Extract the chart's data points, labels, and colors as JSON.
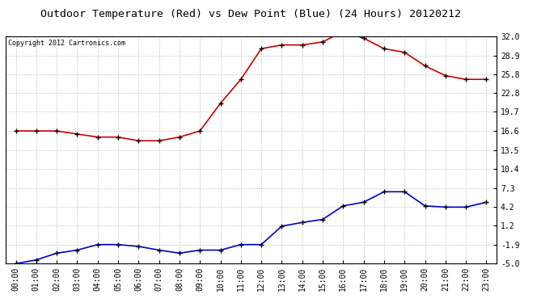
{
  "title": "Outdoor Temperature (Red) vs Dew Point (Blue) (24 Hours) 20120212",
  "copyright_text": "Copyright 2012 Cartronics.com",
  "x_labels": [
    "00:00",
    "01:00",
    "02:00",
    "03:00",
    "04:00",
    "05:00",
    "06:00",
    "07:00",
    "08:00",
    "09:00",
    "10:00",
    "11:00",
    "12:00",
    "13:00",
    "14:00",
    "15:00",
    "16:00",
    "17:00",
    "18:00",
    "19:00",
    "20:00",
    "21:00",
    "22:00",
    "23:00"
  ],
  "temp_red": [
    16.6,
    16.6,
    16.6,
    16.1,
    15.6,
    15.6,
    15.0,
    15.0,
    15.6,
    16.6,
    21.1,
    25.0,
    30.0,
    30.6,
    30.6,
    31.1,
    32.8,
    31.7,
    30.0,
    29.4,
    27.2,
    25.6,
    25.0,
    25.0
  ],
  "dew_blue": [
    -5.0,
    -4.4,
    -3.3,
    -2.8,
    -1.9,
    -1.9,
    -2.2,
    -2.8,
    -3.3,
    -2.8,
    -2.8,
    -1.9,
    -1.9,
    1.1,
    1.7,
    2.2,
    4.4,
    5.0,
    6.7,
    6.7,
    4.4,
    4.2,
    4.2,
    5.0
  ],
  "y_ticks": [
    -5.0,
    -1.9,
    1.2,
    4.2,
    7.3,
    10.4,
    13.5,
    16.6,
    19.7,
    22.8,
    25.8,
    28.9,
    32.0
  ],
  "ylim": [
    -5.0,
    32.0
  ],
  "background_color": "#ffffff",
  "plot_bg_color": "#ffffff",
  "grid_color": "#c8c8c8",
  "red_color": "#cc0000",
  "blue_color": "#0000cc",
  "title_fontsize": 9.5,
  "tick_fontsize": 7,
  "copyright_fontsize": 6
}
